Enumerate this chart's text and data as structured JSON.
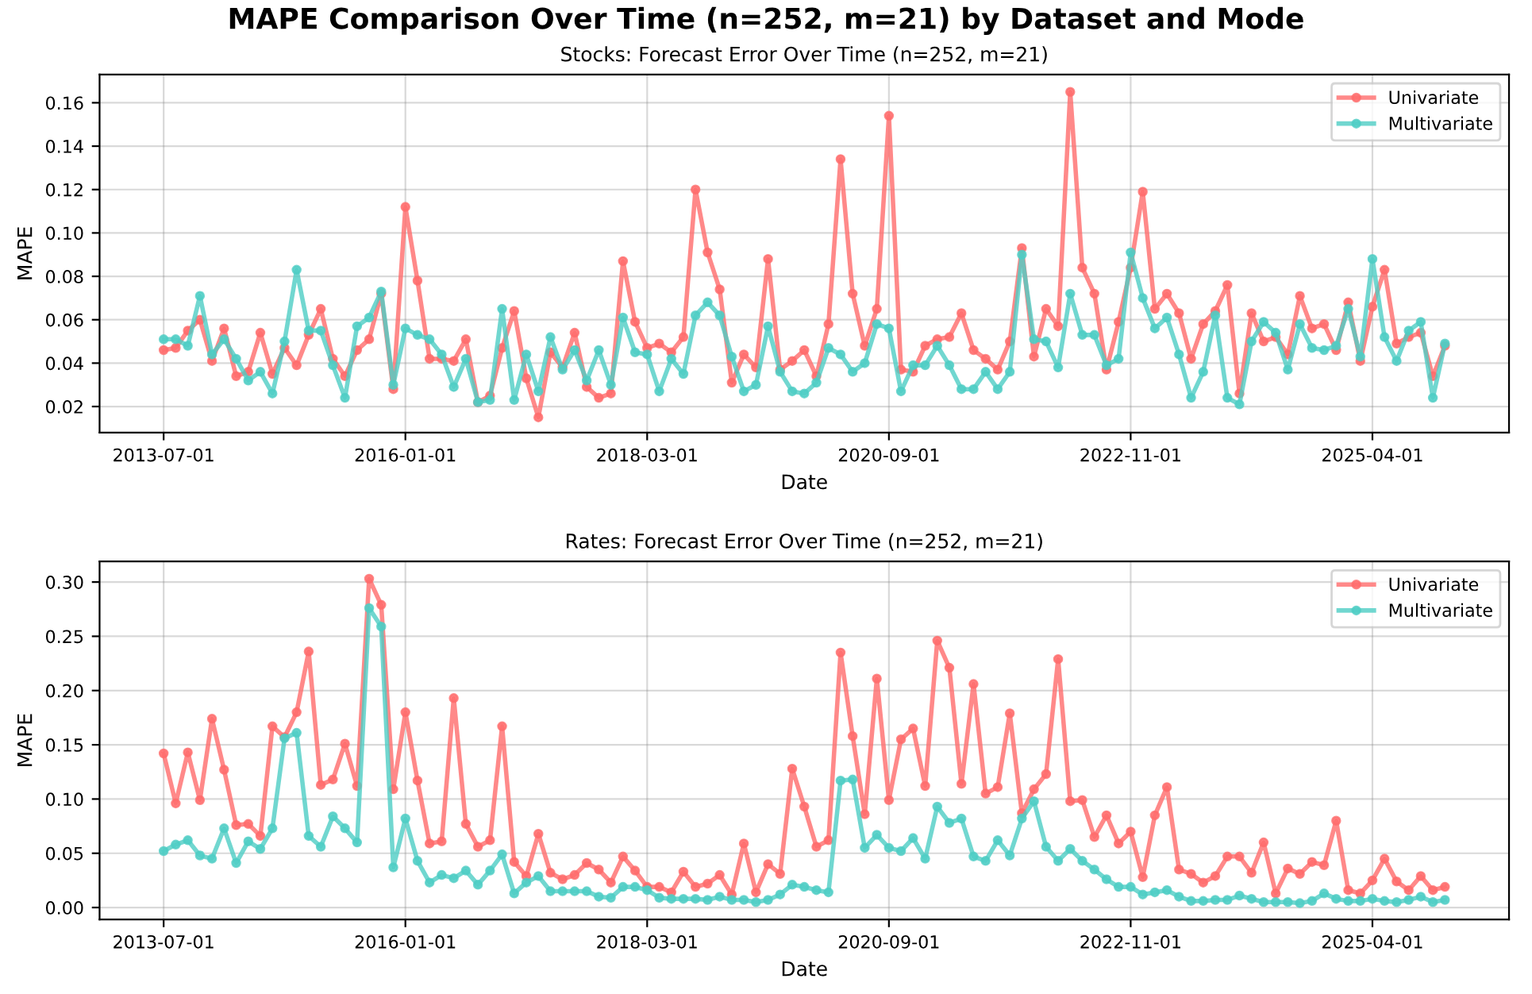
{
  "chart_data": [
    {
      "type": "line",
      "title": "MAPE Comparison Over Time (n=252, m=21) by Dataset and Mode",
      "subtitle": "Stocks: Forecast Error Over Time (n=252, m=21)",
      "xlabel": "Date",
      "ylabel": "MAPE",
      "categories": [
        "2013-07-01",
        null,
        null,
        null,
        null,
        null,
        null,
        null,
        null,
        null,
        null,
        null,
        null,
        null,
        null,
        null,
        null,
        null,
        null,
        null,
        "2016-01-01",
        null,
        null,
        null,
        null,
        null,
        null,
        null,
        null,
        null,
        null,
        null,
        null,
        null,
        null,
        null,
        null,
        null,
        null,
        null,
        "2018-03-01",
        null,
        null,
        null,
        null,
        null,
        null,
        null,
        null,
        null,
        null,
        null,
        null,
        null,
        null,
        null,
        null,
        null,
        null,
        null,
        "2020-09-01",
        null,
        null,
        null,
        null,
        null,
        null,
        null,
        null,
        null,
        null,
        null,
        null,
        null,
        null,
        null,
        null,
        null,
        null,
        null,
        "2022-11-01",
        null,
        null,
        null,
        null,
        null,
        null,
        null,
        null,
        null,
        null,
        null,
        null,
        null,
        null,
        null,
        null,
        null,
        null,
        null,
        "2025-04-01",
        null,
        null,
        null,
        null,
        null,
        null
      ],
      "ylim": [
        0.008,
        0.173
      ],
      "yticks": [
        0.02,
        0.04,
        0.06,
        0.08,
        {
          "value": 0.1,
          "label": "0.10"
        },
        0.12,
        0.14,
        0.16
      ],
      "grid": true,
      "legend": "top right",
      "marker": "circle",
      "line_style": "solid",
      "series": [
        {
          "name": "Univariate",
          "color": "#ff6b6b",
          "values": [
            0.046,
            0.047,
            0.055,
            0.06,
            0.041,
            0.056,
            0.034,
            0.036,
            0.054,
            0.035,
            0.047,
            0.039,
            0.053,
            0.065,
            0.042,
            0.034,
            0.046,
            0.051,
            0.072,
            0.028,
            0.112,
            0.078,
            0.042,
            0.042,
            0.041,
            0.051,
            0.022,
            0.025,
            0.047,
            0.064,
            0.033,
            0.015,
            0.045,
            0.038,
            0.054,
            0.029,
            0.024,
            0.026,
            0.087,
            0.059,
            0.047,
            0.049,
            0.045,
            0.052,
            0.12,
            0.091,
            0.074,
            0.031,
            0.044,
            0.038,
            0.088,
            0.037,
            0.041,
            0.046,
            0.034,
            0.058,
            0.134,
            0.072,
            0.048,
            0.065,
            0.154,
            0.037,
            0.036,
            0.048,
            0.051,
            0.052,
            0.063,
            0.046,
            0.042,
            0.037,
            0.05,
            0.093,
            0.043,
            0.065,
            0.057,
            0.165,
            0.084,
            0.072,
            0.037,
            0.059,
            0.084,
            0.119,
            0.065,
            0.072,
            0.063,
            0.042,
            0.058,
            0.064,
            0.076,
            0.026,
            0.063,
            0.05,
            0.052,
            0.044,
            0.071,
            0.056,
            0.058,
            0.046,
            0.068,
            0.041,
            0.066,
            0.083,
            0.049,
            0.052,
            0.054,
            0.034,
            0.048
          ]
        },
        {
          "name": "Multivariate",
          "color": "#4ecdc4",
          "values": [
            0.051,
            0.051,
            0.048,
            0.071,
            0.044,
            0.051,
            0.042,
            0.032,
            0.036,
            0.026,
            0.05,
            0.083,
            0.055,
            0.055,
            0.039,
            0.024,
            0.057,
            0.061,
            0.073,
            0.03,
            0.056,
            0.053,
            0.051,
            0.044,
            0.029,
            0.042,
            0.022,
            0.023,
            0.065,
            0.023,
            0.044,
            0.027,
            0.052,
            0.037,
            0.046,
            0.032,
            0.046,
            0.03,
            0.061,
            0.045,
            0.044,
            0.027,
            0.042,
            0.035,
            0.062,
            0.068,
            0.062,
            0.043,
            0.027,
            0.03,
            0.057,
            0.036,
            0.027,
            0.026,
            0.031,
            0.047,
            0.044,
            0.036,
            0.04,
            0.058,
            0.056,
            0.027,
            0.039,
            0.039,
            0.048,
            0.039,
            0.028,
            0.028,
            0.036,
            0.028,
            0.036,
            0.09,
            0.051,
            0.05,
            0.038,
            0.072,
            0.053,
            0.053,
            0.039,
            0.042,
            0.091,
            0.07,
            0.056,
            0.061,
            0.044,
            0.024,
            0.036,
            0.062,
            0.024,
            0.021,
            0.05,
            0.059,
            0.054,
            0.037,
            0.058,
            0.047,
            0.046,
            0.048,
            0.065,
            0.043,
            0.088,
            0.052,
            0.041,
            0.055,
            0.059,
            0.024,
            0.049
          ]
        }
      ]
    },
    {
      "type": "line",
      "subtitle": "Rates: Forecast Error Over Time (n=252, m=21)",
      "xlabel": "Date",
      "ylabel": "MAPE",
      "categories": [
        "2013-07-01",
        null,
        null,
        null,
        null,
        null,
        null,
        null,
        null,
        null,
        null,
        null,
        null,
        null,
        null,
        null,
        null,
        null,
        null,
        null,
        "2016-01-01",
        null,
        null,
        null,
        null,
        null,
        null,
        null,
        null,
        null,
        null,
        null,
        null,
        null,
        null,
        null,
        null,
        null,
        null,
        null,
        "2018-03-01",
        null,
        null,
        null,
        null,
        null,
        null,
        null,
        null,
        null,
        null,
        null,
        null,
        null,
        null,
        null,
        null,
        null,
        null,
        null,
        "2020-09-01",
        null,
        null,
        null,
        null,
        null,
        null,
        null,
        null,
        null,
        null,
        null,
        null,
        null,
        null,
        null,
        null,
        null,
        null,
        null,
        "2022-11-01",
        null,
        null,
        null,
        null,
        null,
        null,
        null,
        null,
        null,
        null,
        null,
        null,
        null,
        null,
        null,
        null,
        null,
        null,
        null,
        "2025-04-01",
        null,
        null,
        null,
        null,
        null,
        null
      ],
      "ylim": [
        -0.011,
        0.319
      ],
      "yticks": [
        {
          "value": 0,
          "label": "0.00"
        },
        0.05,
        {
          "value": 0.1,
          "label": "0.10"
        },
        0.15,
        {
          "value": 0.2,
          "label": "0.20"
        },
        0.25,
        {
          "value": 0.3,
          "label": "0.30"
        }
      ],
      "grid": true,
      "legend": "top right",
      "marker": "circle",
      "line_style": "solid",
      "series": [
        {
          "name": "Univariate",
          "color": "#ff6b6b",
          "values": [
            0.142,
            0.096,
            0.143,
            0.099,
            0.174,
            0.127,
            0.076,
            0.077,
            0.066,
            0.167,
            0.157,
            0.18,
            0.236,
            0.113,
            0.118,
            0.151,
            0.112,
            0.303,
            0.279,
            0.109,
            0.18,
            0.117,
            0.059,
            0.061,
            0.193,
            0.077,
            0.056,
            0.062,
            0.167,
            0.042,
            0.029,
            0.068,
            0.032,
            0.026,
            0.03,
            0.041,
            0.035,
            0.023,
            0.047,
            0.034,
            0.019,
            0.019,
            0.014,
            0.033,
            0.019,
            0.022,
            0.03,
            0.012,
            0.059,
            0.014,
            0.04,
            0.031,
            0.128,
            0.093,
            0.056,
            0.062,
            0.235,
            0.158,
            0.086,
            0.211,
            0.099,
            0.155,
            0.165,
            0.112,
            0.246,
            0.221,
            0.114,
            0.206,
            0.105,
            0.111,
            0.179,
            0.087,
            0.109,
            0.123,
            0.229,
            0.098,
            0.099,
            0.065,
            0.085,
            0.059,
            0.07,
            0.028,
            0.085,
            0.111,
            0.035,
            0.031,
            0.023,
            0.029,
            0.047,
            0.047,
            0.032,
            0.06,
            0.013,
            0.036,
            0.031,
            0.042,
            0.039,
            0.08,
            0.016,
            0.013,
            0.025,
            0.045,
            0.024,
            0.016,
            0.029,
            0.016,
            0.019
          ]
        },
        {
          "name": "Multivariate",
          "color": "#4ecdc4",
          "values": [
            0.052,
            0.058,
            0.062,
            0.048,
            0.045,
            0.073,
            0.041,
            0.061,
            0.054,
            0.073,
            0.156,
            0.161,
            0.066,
            0.056,
            0.084,
            0.073,
            0.06,
            0.276,
            0.259,
            0.037,
            0.082,
            0.043,
            0.023,
            0.03,
            0.027,
            0.034,
            0.021,
            0.034,
            0.049,
            0.013,
            0.023,
            0.029,
            0.015,
            0.015,
            0.015,
            0.015,
            0.01,
            0.009,
            0.019,
            0.019,
            0.016,
            0.009,
            0.008,
            0.008,
            0.008,
            0.007,
            0.01,
            0.007,
            0.007,
            0.005,
            0.007,
            0.012,
            0.021,
            0.019,
            0.016,
            0.014,
            0.117,
            0.118,
            0.055,
            0.067,
            0.055,
            0.052,
            0.064,
            0.045,
            0.093,
            0.078,
            0.082,
            0.047,
            0.043,
            0.062,
            0.048,
            0.082,
            0.098,
            0.056,
            0.043,
            0.054,
            0.043,
            0.035,
            0.026,
            0.019,
            0.019,
            0.012,
            0.014,
            0.016,
            0.01,
            0.006,
            0.006,
            0.007,
            0.007,
            0.011,
            0.008,
            0.005,
            0.005,
            0.005,
            0.004,
            0.006,
            0.013,
            0.008,
            0.006,
            0.006,
            0.008,
            0.006,
            0.005,
            0.007,
            0.01,
            0.005,
            0.007
          ]
        }
      ]
    }
  ]
}
